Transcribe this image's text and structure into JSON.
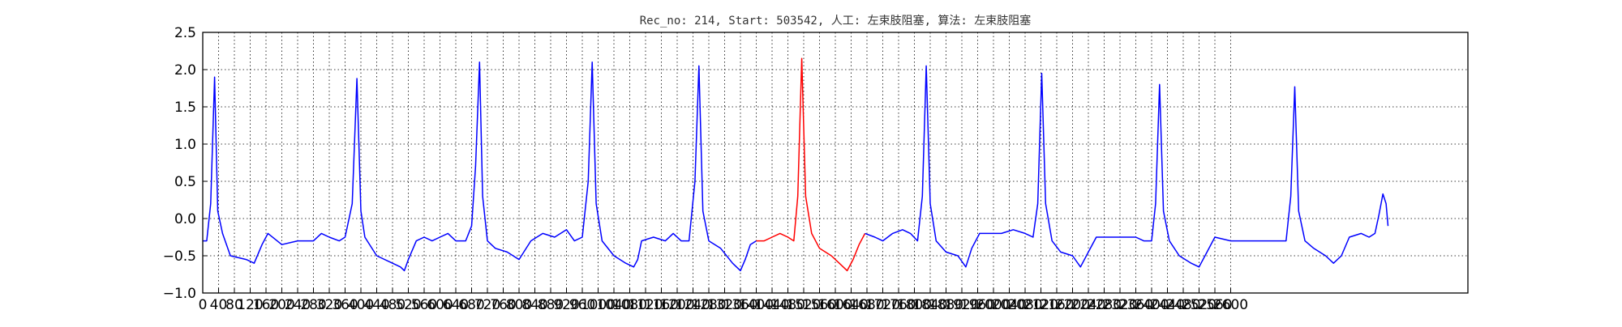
{
  "chart_data": {
    "type": "line",
    "title": "Rec_no: 214, Start: 503542, 人工: 左束肢阻塞, 算法: 左束肢阻塞",
    "xlabel": "",
    "ylabel": "",
    "xlim": [
      0,
      3200
    ],
    "ylim": [
      -1.0,
      2.5
    ],
    "grid": true,
    "grid_style": "dotted",
    "colors": {
      "normal": "#0000ff",
      "highlight": "#ff0000",
      "grid": "#000000"
    },
    "x_ticks": [
      0,
      40,
      80,
      120,
      160,
      200,
      240,
      280,
      320,
      360,
      400,
      440,
      480,
      520,
      560,
      600,
      640,
      680,
      720,
      760,
      800,
      840,
      880,
      920,
      960,
      1000,
      1040,
      1080,
      1120,
      1160,
      1200,
      1240,
      1280,
      1320,
      1360,
      1400,
      1440,
      1480,
      1520,
      1560,
      1600,
      1640,
      1680,
      1720,
      1760,
      1800,
      1840,
      1880,
      1920,
      1960,
      2000,
      2040,
      2080,
      2120,
      2160,
      2200,
      2240,
      2280,
      2320,
      2360,
      2400,
      2440,
      2480,
      2520,
      2560,
      2600
    ],
    "y_ticks": [
      "2.5",
      "2.0",
      "1.5",
      "1.0",
      "0.5",
      "0.0",
      "−0.5",
      "−1.0"
    ],
    "series": [
      {
        "highlight": false,
        "points": [
          [
            0,
            -0.3
          ],
          [
            10,
            -0.3
          ],
          [
            20,
            0.2
          ],
          [
            30,
            1.9
          ],
          [
            38,
            0.1
          ],
          [
            50,
            -0.2
          ],
          [
            70,
            -0.5
          ],
          [
            110,
            -0.55
          ],
          [
            130,
            -0.6
          ],
          [
            150,
            -0.35
          ],
          [
            165,
            -0.2
          ],
          [
            200,
            -0.35
          ],
          [
            240,
            -0.3
          ],
          [
            280,
            -0.3
          ],
          [
            300,
            -0.2
          ],
          [
            320,
            -0.25
          ],
          [
            345,
            -0.3
          ],
          [
            360,
            -0.25
          ],
          [
            378,
            0.2
          ],
          [
            390,
            1.88
          ],
          [
            400,
            0.1
          ],
          [
            410,
            -0.25
          ],
          [
            440,
            -0.5
          ],
          [
            480,
            -0.6
          ],
          [
            500,
            -0.65
          ],
          [
            510,
            -0.7
          ],
          [
            520,
            -0.55
          ],
          [
            540,
            -0.3
          ],
          [
            560,
            -0.25
          ],
          [
            580,
            -0.3
          ],
          [
            600,
            -0.25
          ],
          [
            620,
            -0.2
          ],
          [
            640,
            -0.3
          ],
          [
            665,
            -0.3
          ],
          [
            680,
            -0.1
          ],
          [
            690,
            0.7
          ],
          [
            700,
            2.1
          ],
          [
            708,
            0.3
          ],
          [
            720,
            -0.3
          ],
          [
            740,
            -0.4
          ],
          [
            770,
            -0.45
          ],
          [
            800,
            -0.55
          ],
          [
            830,
            -0.3
          ],
          [
            860,
            -0.2
          ],
          [
            890,
            -0.25
          ],
          [
            920,
            -0.15
          ],
          [
            940,
            -0.3
          ],
          [
            960,
            -0.25
          ],
          [
            975,
            0.5
          ],
          [
            985,
            2.1
          ],
          [
            995,
            0.2
          ],
          [
            1010,
            -0.3
          ],
          [
            1040,
            -0.5
          ],
          [
            1070,
            -0.6
          ],
          [
            1090,
            -0.65
          ],
          [
            1100,
            -0.55
          ],
          [
            1110,
            -0.3
          ],
          [
            1140,
            -0.25
          ],
          [
            1170,
            -0.3
          ],
          [
            1190,
            -0.2
          ],
          [
            1210,
            -0.3
          ],
          [
            1230,
            -0.3
          ],
          [
            1245,
            0.5
          ],
          [
            1255,
            2.05
          ],
          [
            1265,
            0.1
          ],
          [
            1280,
            -0.3
          ],
          [
            1310,
            -0.4
          ],
          [
            1340,
            -0.6
          ],
          [
            1360,
            -0.7
          ],
          [
            1372,
            -0.55
          ],
          [
            1385,
            -0.35
          ],
          [
            1400,
            -0.3
          ]
        ]
      },
      {
        "highlight": true,
        "points": [
          [
            1400,
            -0.3
          ],
          [
            1420,
            -0.3
          ],
          [
            1440,
            -0.25
          ],
          [
            1460,
            -0.2
          ],
          [
            1480,
            -0.25
          ],
          [
            1495,
            -0.3
          ],
          [
            1505,
            0.3
          ],
          [
            1515,
            2.15
          ],
          [
            1525,
            0.3
          ],
          [
            1540,
            -0.2
          ],
          [
            1560,
            -0.4
          ],
          [
            1590,
            -0.5
          ],
          [
            1610,
            -0.6
          ],
          [
            1630,
            -0.7
          ],
          [
            1645,
            -0.55
          ],
          [
            1660,
            -0.35
          ],
          [
            1675,
            -0.2
          ]
        ]
      },
      {
        "highlight": false,
        "points": [
          [
            1675,
            -0.2
          ],
          [
            1700,
            -0.25
          ],
          [
            1720,
            -0.3
          ],
          [
            1745,
            -0.2
          ],
          [
            1770,
            -0.15
          ],
          [
            1790,
            -0.2
          ],
          [
            1808,
            -0.3
          ],
          [
            1820,
            0.3
          ],
          [
            1830,
            2.05
          ],
          [
            1840,
            0.2
          ],
          [
            1855,
            -0.3
          ],
          [
            1880,
            -0.45
          ],
          [
            1910,
            -0.5
          ],
          [
            1930,
            -0.65
          ],
          [
            1945,
            -0.4
          ],
          [
            1965,
            -0.2
          ],
          [
            1990,
            -0.2
          ],
          [
            2020,
            -0.2
          ],
          [
            2050,
            -0.15
          ],
          [
            2080,
            -0.2
          ],
          [
            2100,
            -0.25
          ],
          [
            2112,
            0.2
          ],
          [
            2122,
            1.95
          ],
          [
            2132,
            0.2
          ],
          [
            2148,
            -0.3
          ],
          [
            2170,
            -0.45
          ],
          [
            2200,
            -0.5
          ],
          [
            2220,
            -0.65
          ],
          [
            2240,
            -0.45
          ],
          [
            2260,
            -0.25
          ],
          [
            2290,
            -0.25
          ],
          [
            2330,
            -0.25
          ],
          [
            2360,
            -0.25
          ],
          [
            2380,
            -0.3
          ],
          [
            2400,
            -0.3
          ],
          [
            2410,
            0.2
          ],
          [
            2420,
            1.8
          ],
          [
            2430,
            0.1
          ],
          [
            2445,
            -0.3
          ],
          [
            2470,
            -0.5
          ],
          [
            2500,
            -0.6
          ],
          [
            2520,
            -0.65
          ],
          [
            2540,
            -0.45
          ],
          [
            2560,
            -0.25
          ],
          [
            2600,
            -0.3
          ],
          [
            2640,
            -0.3
          ],
          [
            2680,
            -0.3
          ],
          [
            2720,
            -0.3
          ],
          [
            2740,
            -0.3
          ],
          [
            2752,
            0.3
          ],
          [
            2762,
            1.77
          ],
          [
            2772,
            0.1
          ],
          [
            2788,
            -0.3
          ],
          [
            2810,
            -0.4
          ],
          [
            2840,
            -0.5
          ],
          [
            2860,
            -0.6
          ],
          [
            2880,
            -0.5
          ],
          [
            2900,
            -0.25
          ],
          [
            2930,
            -0.2
          ],
          [
            2950,
            -0.25
          ],
          [
            2965,
            -0.2
          ],
          [
            2975,
            0.05
          ],
          [
            2985,
            0.33
          ],
          [
            2993,
            0.2
          ],
          [
            2998,
            -0.1
          ]
        ]
      }
    ]
  }
}
